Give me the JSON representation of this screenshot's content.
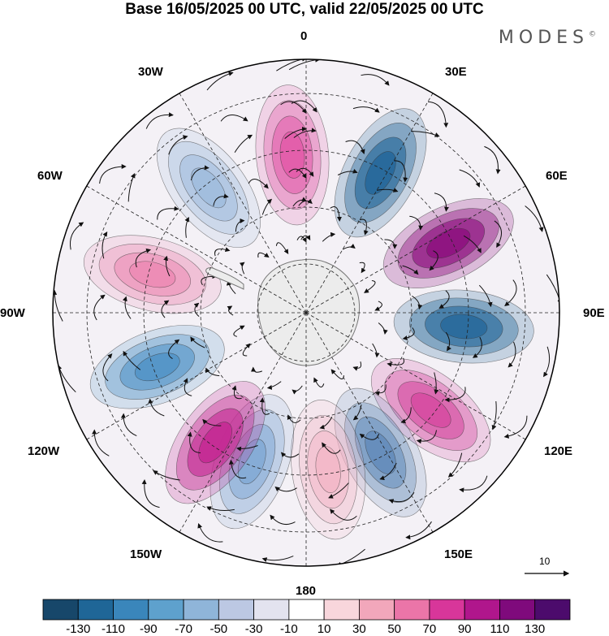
{
  "title": "Base 16/05/2025 00 UTC, valid 22/05/2025 00 UTC",
  "brand": "MODES",
  "brand_mark": "©",
  "longitude_labels": {
    "lon_0": "0",
    "lon_30e": "30E",
    "lon_60e": "60E",
    "lon_90e": "90E",
    "lon_120e": "120E",
    "lon_150e": "150E",
    "lon_180": "180",
    "lon_150w": "150W",
    "lon_120w": "120W",
    "lon_90w": "90W",
    "lon_60w": "60W",
    "lon_30w": "30W"
  },
  "reference_vector": {
    "label": "10"
  },
  "colorbar": {
    "colors": [
      "#17476a",
      "#1f6697",
      "#3a86bb",
      "#5ea1cd",
      "#8fb5d9",
      "#bcc8e3",
      "#e3e3ef",
      "#ffffff",
      "#f8d6dc",
      "#f2a7bb",
      "#eb75a8",
      "#d8369a",
      "#b0168c",
      "#7f0a7c",
      "#4c0b6c"
    ],
    "labels": [
      "-130",
      "-110",
      "-90",
      "-70",
      "-50",
      "-30",
      "-10",
      "10",
      "30",
      "50",
      "70",
      "90",
      "110",
      "130"
    ]
  },
  "anomaly_centers": [
    {
      "lon": 355,
      "value": 80,
      "color": "#e25aa8"
    },
    {
      "lon": 28,
      "value": -105,
      "color": "#26689a"
    },
    {
      "lon": 64,
      "value": 120,
      "color": "#8e1581"
    },
    {
      "lon": 95,
      "value": -110,
      "color": "#2a6b9c"
    },
    {
      "lon": 128,
      "value": 85,
      "color": "#d54aa0"
    },
    {
      "lon": 152,
      "value": -65,
      "color": "#5f89b8"
    },
    {
      "lon": 172,
      "value": 35,
      "color": "#f3b3c4"
    },
    {
      "lon": 200,
      "value": -50,
      "color": "#7da6d3"
    },
    {
      "lon": 215,
      "value": 100,
      "color": "#c42993"
    },
    {
      "lon": 250,
      "value": -75,
      "color": "#4f92c6"
    },
    {
      "lon": 284,
      "value": 55,
      "color": "#ec86b1"
    },
    {
      "lon": 322,
      "value": -45,
      "color": "#9ab9dc"
    }
  ]
}
